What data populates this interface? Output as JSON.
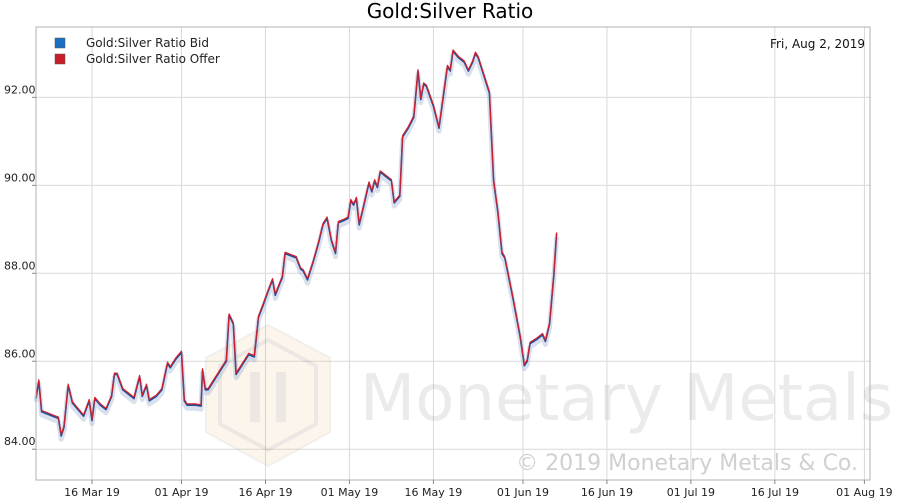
{
  "chart_data": {
    "type": "line",
    "title": "Gold:Silver Ratio",
    "date_label": "Fri, Aug 2, 2019",
    "xlabel": "",
    "ylabel": "",
    "xlim": [
      "2019-03-06",
      "2019-08-02"
    ],
    "ylim": [
      83.3,
      93.6
    ],
    "x_ticks": [
      {
        "date": "2019-03-16",
        "label": "16 Mar 19"
      },
      {
        "date": "2019-04-01",
        "label": "01 Apr 19"
      },
      {
        "date": "2019-04-16",
        "label": "16 Apr 19"
      },
      {
        "date": "2019-05-01",
        "label": "01 May 19"
      },
      {
        "date": "2019-05-16",
        "label": "16 May 19"
      },
      {
        "date": "2019-06-01",
        "label": "01 Jun 19"
      },
      {
        "date": "2019-06-16",
        "label": "16 Jun 19"
      },
      {
        "date": "2019-07-01",
        "label": "01 Jul 19"
      },
      {
        "date": "2019-07-16",
        "label": "16 Jul 19"
      },
      {
        "date": "2019-08-01",
        "label": "01 Aug 19"
      }
    ],
    "y_ticks": [
      {
        "value": 84,
        "label": "84.00"
      },
      {
        "value": 86,
        "label": "86.00"
      },
      {
        "value": 88,
        "label": "88.00"
      },
      {
        "value": 90,
        "label": "90.00"
      },
      {
        "value": 92,
        "label": "92.00"
      }
    ],
    "grid": true,
    "legend_position": "top-left",
    "series": [
      {
        "name": "Gold:Silver Ratio Bid",
        "color": "#1a4fa0",
        "points": [
          [
            "2019-03-06T00:00",
            85.15
          ],
          [
            "2019-03-06T12:00",
            85.55
          ],
          [
            "2019-03-07T00:00",
            84.85
          ],
          [
            "2019-03-08T00:00",
            84.8
          ],
          [
            "2019-03-09T00:00",
            84.75
          ],
          [
            "2019-03-10T00:00",
            84.7
          ],
          [
            "2019-03-10T12:00",
            84.3
          ],
          [
            "2019-03-11T00:00",
            84.5
          ],
          [
            "2019-03-11T18:00",
            85.45
          ],
          [
            "2019-03-12T12:00",
            85.05
          ],
          [
            "2019-03-13T12:00",
            84.9
          ],
          [
            "2019-03-14T12:00",
            84.75
          ],
          [
            "2019-03-15T12:00",
            85.1
          ],
          [
            "2019-03-16T00:00",
            84.65
          ],
          [
            "2019-03-16T12:00",
            85.15
          ],
          [
            "2019-03-17T12:00",
            85.0
          ],
          [
            "2019-03-18T12:00",
            84.9
          ],
          [
            "2019-03-19T12:00",
            85.2
          ],
          [
            "2019-03-20T00:00",
            85.7
          ],
          [
            "2019-03-20T12:00",
            85.7
          ],
          [
            "2019-03-21T12:00",
            85.35
          ],
          [
            "2019-03-22T12:00",
            85.25
          ],
          [
            "2019-03-23T12:00",
            85.15
          ],
          [
            "2019-03-24T12:00",
            85.65
          ],
          [
            "2019-03-25T00:00",
            85.2
          ],
          [
            "2019-03-25T18:00",
            85.45
          ],
          [
            "2019-03-26T06:00",
            85.1
          ],
          [
            "2019-03-27T12:00",
            85.2
          ],
          [
            "2019-03-28T12:00",
            85.35
          ],
          [
            "2019-03-29T12:00",
            85.95
          ],
          [
            "2019-03-30T00:00",
            85.85
          ],
          [
            "2019-03-31T00:00",
            86.05
          ],
          [
            "2019-04-01T00:00",
            86.2
          ],
          [
            "2019-04-01T12:00",
            85.1
          ],
          [
            "2019-04-02T00:00",
            85.0
          ],
          [
            "2019-04-03T12:00",
            85.0
          ],
          [
            "2019-04-04T12:00",
            84.98
          ],
          [
            "2019-04-04T18:00",
            85.8
          ],
          [
            "2019-04-05T06:00",
            85.35
          ],
          [
            "2019-04-05T18:00",
            85.35
          ],
          [
            "2019-04-07T00:00",
            85.6
          ],
          [
            "2019-04-08T00:00",
            85.8
          ],
          [
            "2019-04-09T00:00",
            86.0
          ],
          [
            "2019-04-09T12:00",
            87.05
          ],
          [
            "2019-04-10T06:00",
            86.85
          ],
          [
            "2019-04-10T18:00",
            85.7
          ],
          [
            "2019-04-12T00:00",
            85.95
          ],
          [
            "2019-04-13T00:00",
            86.15
          ],
          [
            "2019-04-14T00:00",
            86.1
          ],
          [
            "2019-04-14T18:00",
            87.0
          ],
          [
            "2019-04-15T12:00",
            87.25
          ],
          [
            "2019-04-16T12:00",
            87.6
          ],
          [
            "2019-04-17T06:00",
            87.85
          ],
          [
            "2019-04-17T18:00",
            87.5
          ],
          [
            "2019-04-18T12:00",
            87.75
          ],
          [
            "2019-04-19T00:00",
            87.9
          ],
          [
            "2019-04-19T12:00",
            88.45
          ],
          [
            "2019-04-20T12:00",
            88.4
          ],
          [
            "2019-04-21T12:00",
            88.35
          ],
          [
            "2019-04-22T06:00",
            88.1
          ],
          [
            "2019-04-22T18:00",
            88.05
          ],
          [
            "2019-04-23T12:00",
            87.85
          ],
          [
            "2019-04-24T12:00",
            88.25
          ],
          [
            "2019-04-25T12:00",
            88.7
          ],
          [
            "2019-04-26T06:00",
            89.1
          ],
          [
            "2019-04-27T00:00",
            89.25
          ],
          [
            "2019-04-27T18:00",
            88.75
          ],
          [
            "2019-04-28T12:00",
            88.45
          ],
          [
            "2019-04-29T00:00",
            89.15
          ],
          [
            "2019-04-30T00:00",
            89.2
          ],
          [
            "2019-04-30T18:00",
            89.25
          ],
          [
            "2019-05-01T06:00",
            89.65
          ],
          [
            "2019-05-01T18:00",
            89.55
          ],
          [
            "2019-05-02T06:00",
            89.7
          ],
          [
            "2019-05-02T18:00",
            89.1
          ],
          [
            "2019-05-03T12:00",
            89.5
          ],
          [
            "2019-05-04T12:00",
            90.05
          ],
          [
            "2019-05-05T00:00",
            89.85
          ],
          [
            "2019-05-05T12:00",
            90.1
          ],
          [
            "2019-05-06T00:00",
            89.95
          ],
          [
            "2019-05-06T12:00",
            90.3
          ],
          [
            "2019-05-07T12:00",
            90.2
          ],
          [
            "2019-05-08T12:00",
            90.1
          ],
          [
            "2019-05-09T00:00",
            89.6
          ],
          [
            "2019-05-10T00:00",
            89.75
          ],
          [
            "2019-05-10T12:00",
            91.1
          ],
          [
            "2019-05-11T12:00",
            91.3
          ],
          [
            "2019-05-12T12:00",
            91.55
          ],
          [
            "2019-05-13T06:00",
            92.6
          ],
          [
            "2019-05-13T18:00",
            91.95
          ],
          [
            "2019-05-14T06:00",
            92.3
          ],
          [
            "2019-05-14T18:00",
            92.25
          ],
          [
            "2019-05-16T00:00",
            91.8
          ],
          [
            "2019-05-17T00:00",
            91.3
          ],
          [
            "2019-05-18T12:00",
            92.7
          ],
          [
            "2019-05-19T00:00",
            92.6
          ],
          [
            "2019-05-19T12:00",
            93.05
          ],
          [
            "2019-05-20T12:00",
            92.9
          ],
          [
            "2019-05-21T12:00",
            92.8
          ],
          [
            "2019-05-22T06:00",
            92.6
          ],
          [
            "2019-05-23T00:00",
            92.8
          ],
          [
            "2019-05-23T12:00",
            93.0
          ],
          [
            "2019-05-24T00:00",
            92.9
          ],
          [
            "2019-05-25T00:00",
            92.5
          ],
          [
            "2019-05-26T00:00",
            92.1
          ],
          [
            "2019-05-26T18:00",
            90.1
          ],
          [
            "2019-05-27T12:00",
            89.4
          ],
          [
            "2019-05-28T06:00",
            88.45
          ],
          [
            "2019-05-28T18:00",
            88.35
          ],
          [
            "2019-05-30T06:00",
            87.4
          ],
          [
            "2019-05-31T12:00",
            86.55
          ],
          [
            "2019-06-01T06:00",
            85.9
          ],
          [
            "2019-06-01T18:00",
            86.0
          ],
          [
            "2019-06-02T06:00",
            86.4
          ],
          [
            "2019-06-03T12:00",
            86.5
          ],
          [
            "2019-06-04T12:00",
            86.6
          ],
          [
            "2019-06-05T00:00",
            86.45
          ],
          [
            "2019-06-05T18:00",
            86.85
          ],
          [
            "2019-06-06T12:00",
            87.95
          ],
          [
            "2019-06-07T00:00",
            88.9
          ]
        ]
      },
      {
        "name": "Gold:Silver Ratio Offer",
        "color": "#d0202a",
        "offset": 0.03
      }
    ]
  },
  "watermark": {
    "brand": "Monetary Metals",
    "copyright": "© 2019 Monetary Metals & Co."
  }
}
